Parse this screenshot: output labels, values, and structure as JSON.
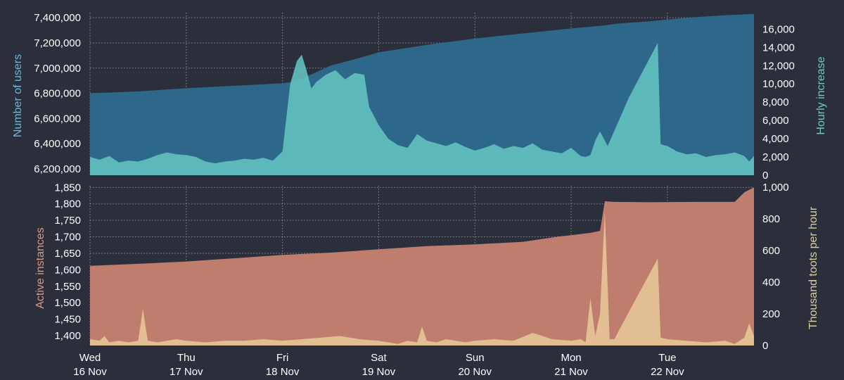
{
  "colors": {
    "background": "#2b2e3b",
    "users_fill": "#2d6a8e",
    "hourly_fill": "#62c1be",
    "instances_fill": "#c78271",
    "toots_fill": "#e6c597",
    "users_label": "#6bb7d8",
    "hourly_label": "#6fc9c0",
    "instances_label": "#d99a84",
    "toots_label": "#d8cfa0"
  },
  "chart_data": [
    {
      "type": "area",
      "panel": "top",
      "x_ticks": [
        {
          "day": "Wed",
          "date": "16 Nov"
        },
        {
          "day": "Thu",
          "date": "17 Nov"
        },
        {
          "day": "Fri",
          "date": "18 Nov"
        },
        {
          "day": "Sat",
          "date": "19 Nov"
        },
        {
          "day": "Sun",
          "date": "20 Nov"
        },
        {
          "day": "Mon",
          "date": "21 Nov"
        },
        {
          "day": "Tue",
          "date": "22 Nov"
        }
      ],
      "x_range_days": [
        0,
        6.9
      ],
      "grid": true,
      "left_axis": {
        "label": "Number of users",
        "ylim": [
          6150000,
          7440000
        ],
        "ticks": [
          "6,200,000",
          "6,400,000",
          "6,600,000",
          "6,800,000",
          "7,000,000",
          "7,200,000",
          "7,400,000"
        ],
        "tick_values": [
          6200000,
          6400000,
          6600000,
          6800000,
          7000000,
          7200000,
          7400000
        ]
      },
      "right_axis": {
        "label": "Hourly increase",
        "ylim": [
          0,
          17800
        ],
        "ticks": [
          "0",
          "2,000",
          "4,000",
          "6,000",
          "8,000",
          "10,000",
          "12,000",
          "14,000",
          "16,000"
        ],
        "tick_values": [
          0,
          2000,
          4000,
          6000,
          8000,
          10000,
          12000,
          14000,
          16000
        ]
      },
      "series": [
        {
          "name": "Number of users",
          "axis": "left",
          "x": [
            0,
            0.5,
            1,
            1.5,
            2,
            2.1,
            2.3,
            2.5,
            2.75,
            3,
            3.5,
            4,
            4.5,
            5,
            5.3,
            5.5,
            5.8,
            6,
            6.3,
            6.6,
            6.9
          ],
          "y": [
            6800000,
            6815000,
            6840000,
            6860000,
            6880000,
            6890000,
            6950000,
            7020000,
            7070000,
            7125000,
            7185000,
            7235000,
            7275000,
            7315000,
            7335000,
            7355000,
            7370000,
            7385000,
            7405000,
            7420000,
            7430000
          ]
        },
        {
          "name": "Hourly increase",
          "axis": "right",
          "x": [
            0,
            0.1,
            0.2,
            0.3,
            0.4,
            0.5,
            0.6,
            0.7,
            0.8,
            0.9,
            1.0,
            1.1,
            1.2,
            1.3,
            1.4,
            1.5,
            1.6,
            1.7,
            1.8,
            1.9,
            2.0,
            2.08,
            2.15,
            2.2,
            2.25,
            2.3,
            2.35,
            2.45,
            2.55,
            2.65,
            2.75,
            2.85,
            2.9,
            2.95,
            3.0,
            3.1,
            3.2,
            3.3,
            3.4,
            3.5,
            3.6,
            3.7,
            3.8,
            3.9,
            4.0,
            4.1,
            4.2,
            4.3,
            4.4,
            4.5,
            4.6,
            4.7,
            4.8,
            4.9,
            5.0,
            5.1,
            5.15,
            5.2,
            5.25,
            5.3,
            5.38,
            5.6,
            5.9,
            5.93,
            6.0,
            6.1,
            6.2,
            6.3,
            6.4,
            6.5,
            6.6,
            6.7,
            6.8,
            6.85,
            6.9
          ],
          "y": [
            2000,
            1700,
            2100,
            1400,
            1600,
            1500,
            1800,
            2200,
            2500,
            2300,
            2200,
            2000,
            1500,
            1300,
            1500,
            1600,
            1800,
            1700,
            1900,
            1600,
            2600,
            10000,
            12500,
            13200,
            11500,
            9500,
            10200,
            11000,
            11500,
            10500,
            11200,
            11000,
            7500,
            6500,
            5500,
            4000,
            3300,
            3000,
            4500,
            3800,
            3500,
            3200,
            3600,
            3100,
            2700,
            3000,
            3400,
            2900,
            3200,
            3000,
            3500,
            2800,
            2600,
            2400,
            3000,
            2100,
            2000,
            2200,
            3800,
            4800,
            3200,
            8500,
            14500,
            3400,
            3200,
            2600,
            2300,
            2400,
            2000,
            2200,
            2300,
            2500,
            2100,
            1500,
            2100
          ]
        }
      ]
    },
    {
      "type": "area",
      "panel": "bottom",
      "x_range_days": [
        0,
        6.9
      ],
      "grid": true,
      "left_axis": {
        "label": "Active instances",
        "ylim": [
          1370,
          1855
        ],
        "ticks": [
          "1,400",
          "1,450",
          "1,500",
          "1,550",
          "1,600",
          "1,650",
          "1,700",
          "1,750",
          "1,800",
          "1,850"
        ],
        "tick_values": [
          1400,
          1450,
          1500,
          1550,
          1600,
          1650,
          1700,
          1750,
          1800,
          1850
        ]
      },
      "right_axis": {
        "label": "Thousand toots per hour",
        "ylim": [
          0,
          1010
        ],
        "ticks": [
          "0",
          "200",
          "400",
          "600",
          "800",
          "1,000"
        ],
        "tick_values": [
          0,
          200,
          400,
          600,
          800,
          1000
        ]
      },
      "series": [
        {
          "name": "Active instances",
          "axis": "left",
          "x": [
            0,
            0.5,
            1,
            1.5,
            2,
            2.5,
            3,
            3.5,
            4,
            4.5,
            4.9,
            5.0,
            5.2,
            5.3,
            5.35,
            5.45,
            5.8,
            6.3,
            6.7,
            6.8,
            6.9
          ],
          "y": [
            1612,
            1618,
            1625,
            1635,
            1645,
            1652,
            1662,
            1672,
            1677,
            1685,
            1702,
            1705,
            1712,
            1718,
            1808,
            1806,
            1805,
            1806,
            1806,
            1835,
            1850
          ]
        },
        {
          "name": "Thousand toots per hour",
          "axis": "right",
          "x": [
            0,
            0.1,
            0.15,
            0.2,
            0.3,
            0.4,
            0.5,
            0.55,
            0.6,
            0.7,
            0.8,
            0.9,
            1.0,
            1.2,
            1.4,
            1.6,
            1.8,
            2.0,
            2.2,
            2.4,
            2.6,
            2.8,
            3.0,
            3.1,
            3.2,
            3.3,
            3.4,
            3.45,
            3.5,
            3.6,
            3.7,
            3.8,
            3.9,
            4.0,
            4.2,
            4.4,
            4.6,
            4.8,
            5.0,
            5.1,
            5.15,
            5.2,
            5.25,
            5.3,
            5.35,
            5.4,
            5.45,
            5.5,
            5.9,
            5.93,
            6.0,
            6.2,
            6.4,
            6.6,
            6.7,
            6.8,
            6.85,
            6.9
          ],
          "y": [
            40,
            30,
            60,
            20,
            30,
            20,
            30,
            230,
            30,
            20,
            30,
            40,
            30,
            20,
            30,
            30,
            40,
            30,
            40,
            50,
            60,
            40,
            30,
            20,
            10,
            30,
            20,
            120,
            30,
            20,
            40,
            30,
            20,
            30,
            40,
            30,
            80,
            40,
            30,
            40,
            20,
            300,
            60,
            200,
            850,
            40,
            40,
            100,
            550,
            50,
            40,
            30,
            20,
            30,
            10,
            50,
            140,
            60
          ]
        }
      ]
    }
  ]
}
